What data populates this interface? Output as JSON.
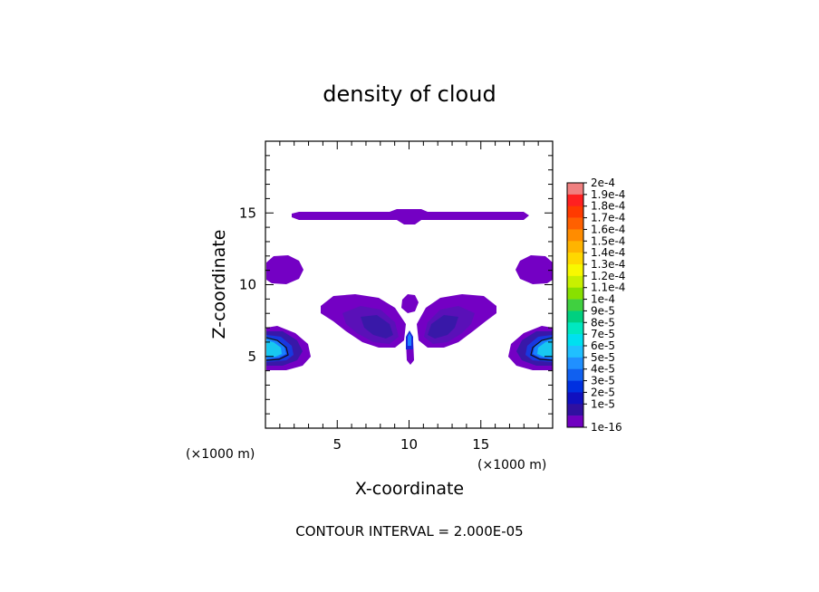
{
  "chart_data": {
    "type": "contour",
    "title": "density of cloud",
    "xlabel": "X-coordinate",
    "ylabel": "Z-coordinate",
    "x_unit": "(×1000 m)",
    "y_unit": "(×1000 m)",
    "xlim": [
      0,
      20
    ],
    "ylim": [
      0,
      20
    ],
    "xticks": [
      5,
      10,
      15
    ],
    "yticks": [
      5,
      10,
      15
    ],
    "contour_interval_text": "CONTOUR INTERVAL = 2.000E-05",
    "colorbar": {
      "labels": [
        "2e-4",
        "1.9e-4",
        "1.8e-4",
        "1.7e-4",
        "1.6e-4",
        "1.5e-4",
        "1.4e-4",
        "1.3e-4",
        "1.2e-4",
        "1.1e-4",
        "1e-4",
        "9e-5",
        "8e-5",
        "7e-5",
        "6e-5",
        "5e-5",
        "4e-5",
        "3e-5",
        "2e-5",
        "1e-5",
        "1e-16"
      ],
      "colors": [
        "#f08080",
        "#ff2020",
        "#ff3a00",
        "#ff6000",
        "#ff8c00",
        "#ffb400",
        "#ffd800",
        "#f8f800",
        "#c8f000",
        "#88e000",
        "#40d040",
        "#00d080",
        "#00e8c0",
        "#00e0f0",
        "#20c0ff",
        "#2090ff",
        "#1060f0",
        "#0030e0",
        "#1010c0",
        "#3010a0",
        "#7000c0"
      ]
    },
    "regions": [
      {
        "name": "upper-band",
        "level": "1e-16",
        "x": [
          1.7,
          18.0
        ],
        "z": [
          14.2,
          15.2
        ]
      },
      {
        "name": "left-mid-blob",
        "level": "1e-16",
        "x": [
          0.0,
          2.5
        ],
        "z": [
          10.0,
          12.0
        ]
      },
      {
        "name": "right-mid-blob",
        "level": "1e-16",
        "x": [
          17.5,
          20.0
        ],
        "z": [
          10.0,
          12.0
        ]
      },
      {
        "name": "central-left-lobe",
        "level": "2e-5",
        "x": [
          3.8,
          9.8
        ],
        "z": [
          5.4,
          9.0
        ]
      },
      {
        "name": "central-right-lobe",
        "level": "2e-5",
        "x": [
          10.4,
          16.0
        ],
        "z": [
          5.4,
          9.0
        ]
      },
      {
        "name": "central-top-blob",
        "level": "1e-16",
        "x": [
          9.3,
          10.6
        ],
        "z": [
          7.9,
          9.3
        ]
      },
      {
        "name": "central-column",
        "level": "4e-5",
        "x": [
          9.6,
          10.4
        ],
        "z": [
          4.5,
          6.6
        ]
      },
      {
        "name": "left-core",
        "level": "6e-5",
        "x": [
          0.0,
          3.2
        ],
        "z": [
          4.0,
          7.0
        ]
      },
      {
        "name": "right-core",
        "level": "6e-5",
        "x": [
          16.8,
          20.0
        ],
        "z": [
          4.0,
          7.0
        ]
      }
    ]
  }
}
